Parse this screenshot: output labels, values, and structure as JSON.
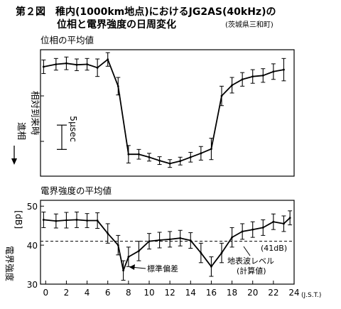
{
  "figure": {
    "title_line1": "第２図　稚内(1000km地点)におけるJG2AS(40kHz)の",
    "title_line2": "位相と電界強度の日周変化",
    "location": "(茨城県三和町)"
  },
  "chart_data": [
    {
      "type": "line",
      "title": "位相の平均値",
      "ylabel_vertical": "相対到来時",
      "advance_label": "進相",
      "scale_bar_label": "5μsec",
      "scale_bar_us": 5,
      "grid": false,
      "xlim": [
        -0.5,
        24
      ],
      "ylim_us": [
        -23.5,
        2.5
      ],
      "x": [
        -0.2,
        1.0,
        2.0,
        3.0,
        4.0,
        5.0,
        6.0,
        7.0,
        8.0,
        9.0,
        10.0,
        11.0,
        12.0,
        13.0,
        14.0,
        15.0,
        16.0,
        17.0,
        18.0,
        19.0,
        20.0,
        21.0,
        22.0,
        23.0
      ],
      "values_us": [
        -1.0,
        -0.5,
        -0.3,
        -0.6,
        -0.5,
        -1.2,
        0.5,
        -5.0,
        -19.0,
        -19.0,
        -19.6,
        -20.3,
        -20.9,
        -20.4,
        -19.6,
        -18.8,
        -17.9,
        -7.0,
        -4.8,
        -3.6,
        -3.0,
        -2.8,
        -2.0,
        -1.6
      ],
      "error_us": [
        1.4,
        1.2,
        1.3,
        1.2,
        1.2,
        1.8,
        1.4,
        1.8,
        1.8,
        1.0,
        0.8,
        0.8,
        0.8,
        0.8,
        1.0,
        1.4,
        2.2,
        2.0,
        1.6,
        1.4,
        1.4,
        1.4,
        1.6,
        2.3
      ]
    },
    {
      "type": "line",
      "title": "電界強度の平均値",
      "ylabel": "電界強度",
      "unit": "[dB]",
      "xlabel_unit": "(J.S.T.)",
      "grid": false,
      "xlim": [
        -0.5,
        24
      ],
      "ylim": [
        30,
        51.5
      ],
      "y_ticks": [
        30,
        40,
        50
      ],
      "x_ticks": [
        0,
        2,
        4,
        6,
        8,
        10,
        12,
        14,
        16,
        18,
        20,
        22,
        24
      ],
      "x": [
        -0.2,
        1.0,
        2.0,
        3.0,
        4.0,
        5.0,
        6.0,
        7.0,
        7.5,
        8.0,
        9.0,
        10.0,
        11.0,
        12.0,
        13.0,
        14.0,
        15.0,
        16.0,
        17.0,
        18.0,
        19.0,
        20.0,
        21.0,
        22.0,
        23.0,
        23.6
      ],
      "values": [
        46.5,
        46.2,
        46.4,
        46.5,
        46.3,
        46.3,
        43.0,
        40.0,
        33.5,
        37.0,
        38.5,
        41.0,
        41.3,
        41.5,
        41.8,
        41.2,
        38.0,
        34.5,
        38.0,
        42.0,
        43.5,
        44.0,
        44.5,
        46.0,
        45.5,
        47.0
      ],
      "error": [
        2.0,
        1.8,
        2.0,
        2.0,
        1.8,
        2.0,
        2.5,
        2.5,
        2.5,
        2.5,
        2.5,
        2.0,
        2.0,
        2.0,
        2.0,
        2.0,
        2.5,
        2.5,
        2.5,
        2.5,
        2.0,
        2.0,
        2.0,
        2.0,
        2.0,
        1.8
      ],
      "reference": {
        "value": 41,
        "label": "(41dB)",
        "name_line1": "地表波レベル",
        "name_line2": "(計算値)"
      },
      "stddev_label": "標準偏差"
    }
  ]
}
